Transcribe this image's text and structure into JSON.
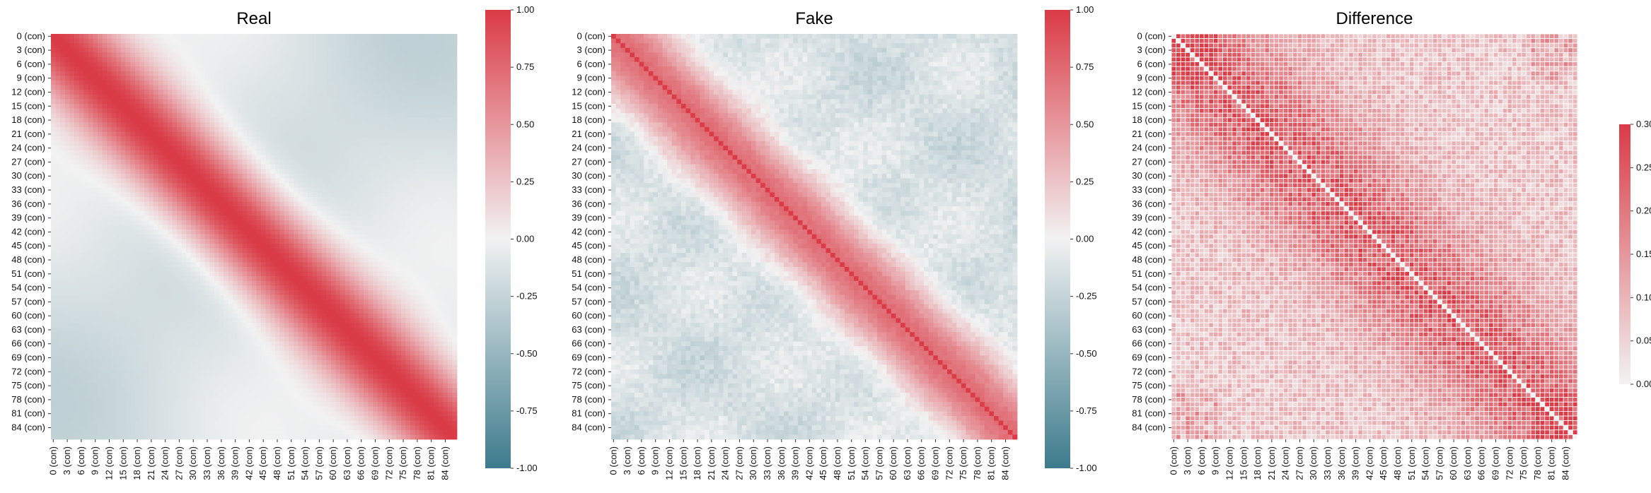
{
  "chart_data": [
    {
      "type": "heatmap",
      "title": "Real",
      "n": 87,
      "tick_labels": [
        "0 (con)",
        "3 (con)",
        "6 (con)",
        "9 (con)",
        "12 (con)",
        "15 (con)",
        "18 (con)",
        "21 (con)",
        "24 (con)",
        "27 (con)",
        "30 (con)",
        "33 (con)",
        "36 (con)",
        "39 (con)",
        "42 (con)",
        "45 (con)",
        "48 (con)",
        "51 (con)",
        "54 (con)",
        "57 (con)",
        "60 (con)",
        "63 (con)",
        "66 (con)",
        "69 (con)",
        "72 (con)",
        "75 (con)",
        "78 (con)",
        "81 (con)",
        "84 (con)"
      ],
      "tick_step": 3,
      "value_range": [
        -1.0,
        1.0
      ],
      "colorbar_ticks": [
        "-1.00",
        "-0.75",
        "-0.50",
        "-0.25",
        "0.00",
        "0.25",
        "0.50",
        "0.75",
        "1.00"
      ],
      "colormap": {
        "negative": "#3d7b8c",
        "center": "#f2f2f2",
        "positive": "#da3b46"
      },
      "description_values": {
        "diagonal": 1.0,
        "band_halfwidth_cells": 18,
        "off_band_min": -0.3,
        "off_band_typical": -0.15
      }
    },
    {
      "type": "heatmap",
      "title": "Fake",
      "n": 87,
      "tick_labels": [
        "0 (con)",
        "3 (con)",
        "6 (con)",
        "9 (con)",
        "12 (con)",
        "15 (con)",
        "18 (con)",
        "21 (con)",
        "24 (con)",
        "27 (con)",
        "30 (con)",
        "33 (con)",
        "36 (con)",
        "39 (con)",
        "42 (con)",
        "45 (con)",
        "48 (con)",
        "51 (con)",
        "54 (con)",
        "57 (con)",
        "60 (con)",
        "63 (con)",
        "66 (con)",
        "69 (con)",
        "72 (con)",
        "75 (con)",
        "78 (con)",
        "81 (con)",
        "84 (con)"
      ],
      "tick_step": 3,
      "value_range": [
        -1.0,
        1.0
      ],
      "colorbar_ticks": [
        "-1.00",
        "-0.75",
        "-0.50",
        "-0.25",
        "0.00",
        "0.25",
        "0.50",
        "0.75",
        "1.00"
      ],
      "colormap": {
        "negative": "#3d7b8c",
        "center": "#f2f2f2",
        "positive": "#da3b46"
      },
      "description_values": {
        "diagonal": 1.0,
        "band_halfwidth_cells": 15,
        "off_band_min": -0.35,
        "off_band_typical": -0.15
      }
    },
    {
      "type": "heatmap",
      "title": "Difference",
      "n": 87,
      "tick_labels": [
        "0 (con)",
        "3 (con)",
        "6 (con)",
        "9 (con)",
        "12 (con)",
        "15 (con)",
        "18 (con)",
        "21 (con)",
        "24 (con)",
        "27 (con)",
        "30 (con)",
        "33 (con)",
        "36 (con)",
        "39 (con)",
        "42 (con)",
        "45 (con)",
        "48 (con)",
        "51 (con)",
        "54 (con)",
        "57 (con)",
        "60 (con)",
        "63 (con)",
        "66 (con)",
        "69 (con)",
        "72 (con)",
        "75 (con)",
        "78 (con)",
        "81 (con)",
        "84 (con)"
      ],
      "tick_step": 3,
      "value_range": [
        0.0,
        0.3
      ],
      "colorbar_ticks": [
        "0.00",
        "0.05",
        "0.10",
        "0.15",
        "0.20",
        "0.25",
        "0.30"
      ],
      "colormap": {
        "low": "#f2f2f2",
        "high": "#da3b46"
      },
      "cell_borders": "white",
      "description_values": {
        "diagonal": 0.0,
        "near_diagonal_typical": 0.25,
        "off_band_typical": 0.08
      }
    }
  ]
}
